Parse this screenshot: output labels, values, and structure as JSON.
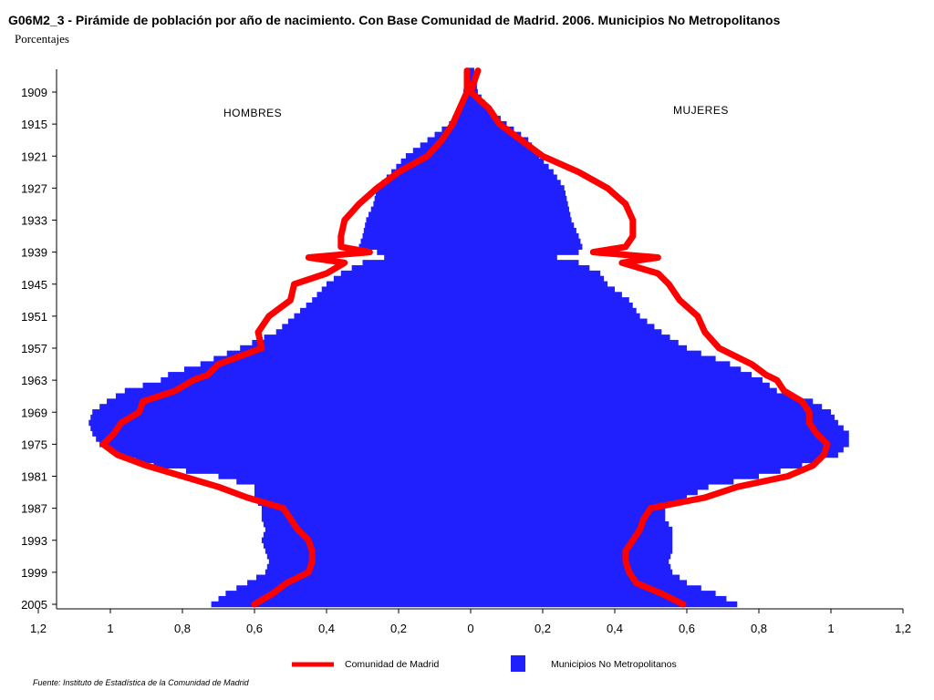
{
  "chart_data": {
    "type": "population-pyramid",
    "title": "G06M2_3 - Pirámide de población por año de nacimiento. Con Base Comunidad de Madrid. 2006.  Municipios No Metropolitanos",
    "subtitle": "Porcentajes",
    "left_label": "HOMBRES",
    "right_label": "MUJERES",
    "x_ticks_left": [
      "1,2",
      "1",
      "0,8",
      "0,6",
      "0,4",
      "0,2",
      "0"
    ],
    "x_ticks_right": [
      "0,2",
      "0,4",
      "0,6",
      "0,8",
      "1",
      "1,2"
    ],
    "x_range": [
      0,
      1.2
    ],
    "y_ticks": [
      "1909",
      "1915",
      "1921",
      "1927",
      "1933",
      "1939",
      "1945",
      "1951",
      "1957",
      "1963",
      "1969",
      "1975",
      "1981",
      "1987",
      "1993",
      "1999",
      "2005"
    ],
    "y_range": [
      1905,
      2005
    ],
    "legend": [
      {
        "label": "Comunidad de Madrid",
        "color": "#ff0000",
        "shape": "line"
      },
      {
        "label": "Municipios No Metropolitanos",
        "color": "#2020ff",
        "shape": "square"
      }
    ],
    "source": "Fuente: Instituto de Estadística de la Comunidad de Madrid",
    "series": [
      {
        "name": "Municipios No Metropolitanos",
        "color": "#2020ff",
        "years": [
          1905,
          1909,
          1912,
          1915,
          1918,
          1921,
          1924,
          1927,
          1930,
          1933,
          1936,
          1938,
          1939,
          1940,
          1941,
          1943,
          1945,
          1948,
          1951,
          1954,
          1957,
          1960,
          1962,
          1963,
          1965,
          1967,
          1969,
          1971,
          1973,
          1975,
          1977,
          1979,
          1981,
          1983,
          1985,
          1987,
          1989,
          1991,
          1993,
          1995,
          1997,
          1999,
          2001,
          2003,
          2005
        ],
        "male": [
          0.01,
          0.02,
          0.03,
          0.06,
          0.12,
          0.18,
          0.22,
          0.26,
          0.27,
          0.29,
          0.3,
          0.31,
          0.26,
          0.24,
          0.3,
          0.36,
          0.4,
          0.44,
          0.49,
          0.54,
          0.64,
          0.75,
          0.84,
          0.86,
          0.96,
          1.01,
          1.05,
          1.06,
          1.05,
          1.03,
          0.98,
          0.88,
          0.7,
          0.6,
          0.6,
          0.58,
          0.58,
          0.57,
          0.58,
          0.57,
          0.56,
          0.57,
          0.62,
          0.68,
          0.72
        ],
        "female": [
          0.01,
          0.02,
          0.05,
          0.1,
          0.16,
          0.19,
          0.23,
          0.26,
          0.27,
          0.28,
          0.3,
          0.31,
          0.3,
          0.24,
          0.3,
          0.36,
          0.38,
          0.44,
          0.47,
          0.53,
          0.6,
          0.72,
          0.78,
          0.81,
          0.85,
          0.95,
          1.0,
          1.02,
          1.05,
          1.05,
          1.02,
          0.92,
          0.8,
          0.66,
          0.6,
          0.54,
          0.54,
          0.56,
          0.56,
          0.56,
          0.55,
          0.56,
          0.6,
          0.68,
          0.74
        ]
      },
      {
        "name": "Comunidad de Madrid",
        "color": "#ff0000",
        "years": [
          1905,
          1909,
          1912,
          1915,
          1918,
          1921,
          1924,
          1927,
          1930,
          1933,
          1936,
          1938,
          1939,
          1940,
          1941,
          1943,
          1945,
          1948,
          1951,
          1954,
          1957,
          1960,
          1962,
          1963,
          1965,
          1967,
          1969,
          1971,
          1973,
          1975,
          1977,
          1979,
          1981,
          1983,
          1985,
          1987,
          1989,
          1991,
          1993,
          1995,
          1997,
          1999,
          2001,
          2003,
          2005
        ],
        "male": [
          0.01,
          0.01,
          0.03,
          0.05,
          0.08,
          0.12,
          0.2,
          0.26,
          0.31,
          0.35,
          0.36,
          0.36,
          0.28,
          0.45,
          0.35,
          0.4,
          0.49,
          0.5,
          0.56,
          0.59,
          0.58,
          0.7,
          0.73,
          0.77,
          0.82,
          0.91,
          0.92,
          0.97,
          0.99,
          1.02,
          0.98,
          0.9,
          0.8,
          0.7,
          0.62,
          0.52,
          0.5,
          0.48,
          0.45,
          0.44,
          0.44,
          0.45,
          0.51,
          0.55,
          0.6
        ],
        "female": [
          0.02,
          0.0,
          0.05,
          0.08,
          0.14,
          0.2,
          0.3,
          0.38,
          0.43,
          0.45,
          0.45,
          0.43,
          0.34,
          0.52,
          0.42,
          0.52,
          0.55,
          0.58,
          0.63,
          0.65,
          0.69,
          0.78,
          0.82,
          0.85,
          0.87,
          0.92,
          0.94,
          0.94,
          0.96,
          0.99,
          0.98,
          0.95,
          0.88,
          0.74,
          0.65,
          0.5,
          0.48,
          0.47,
          0.45,
          0.43,
          0.43,
          0.44,
          0.46,
          0.53,
          0.59
        ]
      }
    ]
  }
}
